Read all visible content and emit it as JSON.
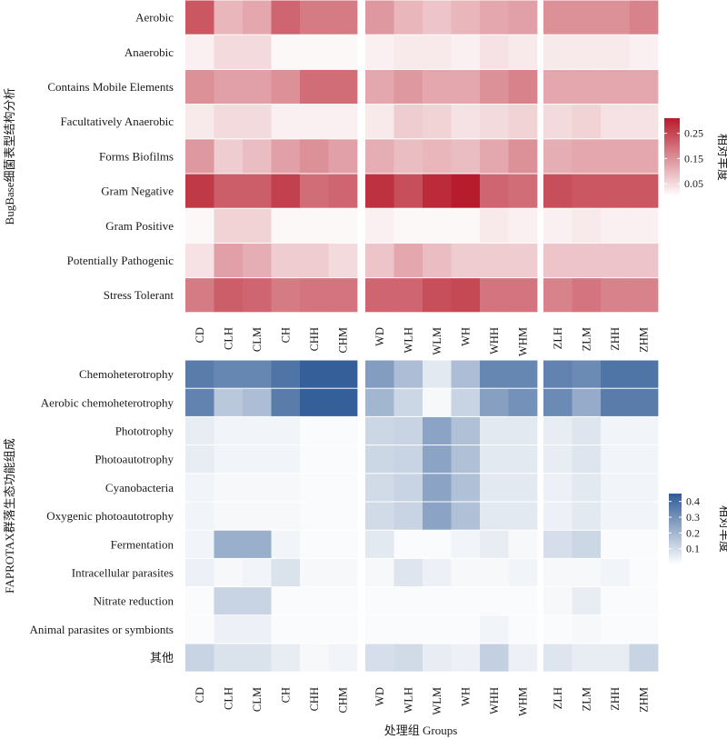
{
  "chart_data": [
    {
      "type": "heatmap",
      "ylabel": "BugBase细菌表型结构分析",
      "panels": [
        [
          "CD",
          "CLH",
          "CLM",
          "CH",
          "CHH",
          "CHM"
        ],
        [
          "WD",
          "WLH",
          "WLM",
          "WH",
          "WHH",
          "WHM"
        ],
        [
          "ZLH",
          "ZLM",
          "ZHH",
          "ZHM"
        ]
      ],
      "columns": [
        "CD",
        "CLH",
        "CLM",
        "CH",
        "CHH",
        "CHM",
        "WD",
        "WLH",
        "WLM",
        "WH",
        "WHH",
        "WHM",
        "ZLH",
        "ZLM",
        "ZHH",
        "ZHM"
      ],
      "rows": [
        "Aerobic",
        "Anaerobic",
        "Contains Mobile Elements",
        "Facultatively Anaerobic",
        "Forms Biofilms",
        "Gram Negative",
        "Gram Positive",
        "Potentially Pathogenic",
        "Stress Tolerant"
      ],
      "values": [
        [
          0.23,
          0.1,
          0.12,
          0.21,
          0.18,
          0.18,
          0.14,
          0.1,
          0.08,
          0.1,
          0.12,
          0.13,
          0.15,
          0.15,
          0.15,
          0.17
        ],
        [
          0.02,
          0.05,
          0.05,
          0.01,
          0.01,
          0.01,
          0.02,
          0.03,
          0.03,
          0.02,
          0.04,
          0.03,
          0.03,
          0.03,
          0.03,
          0.02
        ],
        [
          0.15,
          0.13,
          0.13,
          0.15,
          0.2,
          0.2,
          0.12,
          0.14,
          0.12,
          0.12,
          0.15,
          0.17,
          0.12,
          0.12,
          0.12,
          0.12
        ],
        [
          0.03,
          0.05,
          0.05,
          0.02,
          0.02,
          0.02,
          0.03,
          0.07,
          0.06,
          0.04,
          0.05,
          0.06,
          0.05,
          0.06,
          0.04,
          0.04
        ],
        [
          0.14,
          0.07,
          0.09,
          0.13,
          0.15,
          0.13,
          0.11,
          0.09,
          0.1,
          0.09,
          0.12,
          0.15,
          0.11,
          0.12,
          0.12,
          0.12
        ],
        [
          0.27,
          0.22,
          0.22,
          0.26,
          0.2,
          0.21,
          0.28,
          0.24,
          0.29,
          0.31,
          0.21,
          0.2,
          0.24,
          0.23,
          0.23,
          0.23
        ],
        [
          0.01,
          0.06,
          0.06,
          0.01,
          0.01,
          0.01,
          0.02,
          0.01,
          0.01,
          0.01,
          0.03,
          0.02,
          0.02,
          0.03,
          0.02,
          0.02
        ],
        [
          0.04,
          0.13,
          0.11,
          0.07,
          0.07,
          0.05,
          0.08,
          0.12,
          0.09,
          0.07,
          0.07,
          0.07,
          0.08,
          0.08,
          0.08,
          0.08
        ],
        [
          0.18,
          0.22,
          0.21,
          0.18,
          0.19,
          0.19,
          0.21,
          0.21,
          0.24,
          0.25,
          0.19,
          0.19,
          0.17,
          0.19,
          0.17,
          0.17
        ]
      ],
      "color_low": "#ffffff",
      "color_high": "#b71c2c",
      "legend": {
        "title": "相对丰度",
        "ticks": [
          0.05,
          0.15,
          0.25
        ],
        "range": [
          0.0,
          0.31
        ]
      }
    },
    {
      "type": "heatmap",
      "ylabel": "FAPROTAX群落生态功能组成",
      "xlabel": "处理组 Groups",
      "panels": [
        [
          "CD",
          "CLH",
          "CLM",
          "CH",
          "CHH",
          "CHM"
        ],
        [
          "WD",
          "WLH",
          "WLM",
          "WH",
          "WHH",
          "WHM"
        ],
        [
          "ZLH",
          "ZLM",
          "ZHH",
          "ZHM"
        ]
      ],
      "columns": [
        "CD",
        "CLH",
        "CLM",
        "CH",
        "CHH",
        "CHM",
        "WD",
        "WLH",
        "WLM",
        "WH",
        "WHH",
        "WHM",
        "ZLH",
        "ZLM",
        "ZHH",
        "ZHM"
      ],
      "rows": [
        "Chemoheterotrophy",
        "Aerobic chemoheterotrophy",
        "Phototrophy",
        "Photoautotrophy",
        "Cyanobacteria",
        "Oxygenic photoautotrophy",
        "Fermentation",
        "Intracellular parasites",
        "Nitrate reduction",
        "Animal parasites or symbionts",
        "其他"
      ],
      "values": [
        [
          0.36,
          0.33,
          0.33,
          0.38,
          0.44,
          0.44,
          0.27,
          0.18,
          0.06,
          0.18,
          0.33,
          0.33,
          0.34,
          0.32,
          0.38,
          0.38
        ],
        [
          0.34,
          0.15,
          0.18,
          0.36,
          0.44,
          0.44,
          0.2,
          0.11,
          0.02,
          0.12,
          0.26,
          0.3,
          0.32,
          0.23,
          0.36,
          0.36
        ],
        [
          0.05,
          0.03,
          0.03,
          0.03,
          0.01,
          0.01,
          0.11,
          0.12,
          0.25,
          0.17,
          0.06,
          0.06,
          0.05,
          0.07,
          0.03,
          0.03
        ],
        [
          0.05,
          0.03,
          0.03,
          0.03,
          0.01,
          0.01,
          0.11,
          0.12,
          0.25,
          0.17,
          0.06,
          0.06,
          0.05,
          0.07,
          0.03,
          0.03
        ],
        [
          0.03,
          0.02,
          0.02,
          0.02,
          0.01,
          0.01,
          0.1,
          0.12,
          0.25,
          0.17,
          0.06,
          0.06,
          0.04,
          0.06,
          0.03,
          0.03
        ],
        [
          0.03,
          0.02,
          0.02,
          0.02,
          0.01,
          0.01,
          0.1,
          0.12,
          0.25,
          0.17,
          0.06,
          0.06,
          0.04,
          0.06,
          0.03,
          0.03
        ],
        [
          0.03,
          0.22,
          0.22,
          0.03,
          0.01,
          0.01,
          0.06,
          0.01,
          0.01,
          0.03,
          0.05,
          0.02,
          0.09,
          0.11,
          0.01,
          0.01
        ],
        [
          0.04,
          0.02,
          0.03,
          0.08,
          0.02,
          0.02,
          0.02,
          0.07,
          0.04,
          0.02,
          0.02,
          0.03,
          0.02,
          0.02,
          0.03,
          0.01
        ],
        [
          0.01,
          0.12,
          0.12,
          0.01,
          0.01,
          0.01,
          0.01,
          0.01,
          0.01,
          0.01,
          0.01,
          0.01,
          0.02,
          0.05,
          0.01,
          0.01
        ],
        [
          0.01,
          0.04,
          0.04,
          0.01,
          0.01,
          0.01,
          0.01,
          0.01,
          0.01,
          0.01,
          0.03,
          0.01,
          0.01,
          0.02,
          0.01,
          0.01
        ],
        [
          0.12,
          0.08,
          0.08,
          0.05,
          0.02,
          0.03,
          0.09,
          0.1,
          0.05,
          0.04,
          0.13,
          0.04,
          0.07,
          0.05,
          0.05,
          0.12
        ]
      ],
      "color_low": "#ffffff",
      "color_high": "#2f5b96",
      "legend": {
        "title": "相对丰度",
        "ticks": [
          0.1,
          0.2,
          0.3,
          0.4
        ],
        "range": [
          0.0,
          0.45
        ]
      }
    }
  ]
}
